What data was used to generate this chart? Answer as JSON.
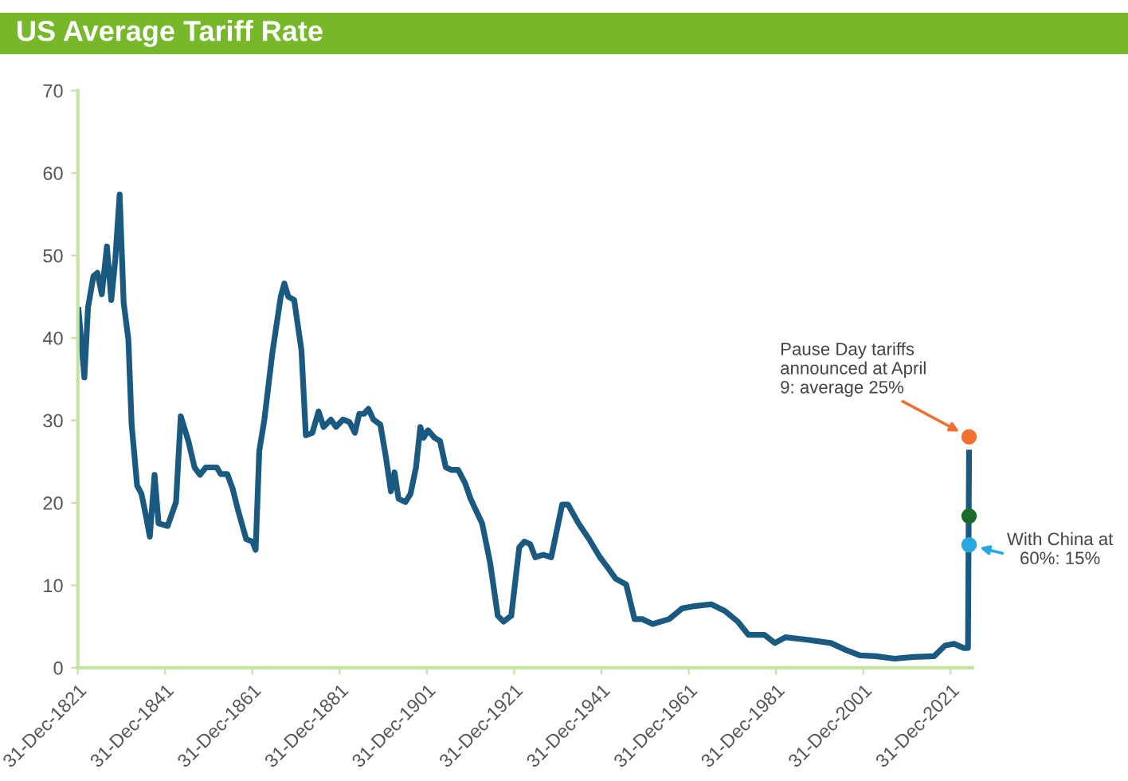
{
  "chart_data": {
    "type": "line",
    "title": "US Average Tariff Rate",
    "xlim": [
      "1821-12-31",
      "2026-12-31"
    ],
    "ylim": [
      0,
      70
    ],
    "xticks": [
      {
        "value": "1821-12-31",
        "label": "31-Dec-1821"
      },
      {
        "value": "1841-12-31",
        "label": "31-Dec-1841"
      },
      {
        "value": "1861-12-31",
        "label": "31-Dec-1861"
      },
      {
        "value": "1881-12-31",
        "label": "31-Dec-1881"
      },
      {
        "value": "1901-12-31",
        "label": "31-Dec-1901"
      },
      {
        "value": "1921-12-31",
        "label": "31-Dec-1921"
      },
      {
        "value": "1941-12-31",
        "label": "31-Dec-1941"
      },
      {
        "value": "1961-12-31",
        "label": "31-Dec-1961"
      },
      {
        "value": "1981-12-31",
        "label": "31-Dec-1981"
      },
      {
        "value": "2001-12-31",
        "label": "31-Dec-2001"
      },
      {
        "value": "2021-12-31",
        "label": "31-Dec-2021"
      }
    ],
    "yticks": [
      0,
      10,
      20,
      30,
      40,
      50,
      60,
      70
    ],
    "grid": false,
    "legend": false,
    "marker": "none",
    "line_style": "solid",
    "series": [
      {
        "color": "#1a5a80",
        "x": [
          "1822-03",
          "1823-07",
          "1824-05",
          "1825-08",
          "1826-07",
          "1827-07",
          "1828-09",
          "1829-09",
          "1830-08",
          "1831-08",
          "1832-07",
          "1833-08",
          "1834-05",
          "1835-08",
          "1836-08",
          "1837-08",
          "1838-07",
          "1839-08",
          "1840-07",
          "1842-08",
          "1844-07",
          "1845-08",
          "1847-05",
          "1848-10",
          "1850-01",
          "1851-05",
          "1853-11",
          "1854-10",
          "1856-04",
          "1857-07",
          "1858-09",
          "1860-08",
          "1862-01",
          "1862-10",
          "1863-08",
          "1864-10",
          "1866-08",
          "1868-07",
          "1869-05",
          "1870-04",
          "1871-08",
          "1873-04",
          "1874-04",
          "1875-10",
          "1877-03",
          "1878-05",
          "1880-01",
          "1881-03",
          "1882-10",
          "1884-04",
          "1885-07",
          "1886-07",
          "1887-08",
          "1888-08",
          "1889-10",
          "1891-05",
          "1892-08",
          "1893-10",
          "1894-08",
          "1895-07",
          "1897-02",
          "1898-04",
          "1899-07",
          "1900-07",
          "1901-04",
          "1902-04",
          "1903-10",
          "1905-01",
          "1906-05",
          "1907-09",
          "1909-03",
          "1910-10",
          "1912-01",
          "1913-07",
          "1914-09",
          "1916-07",
          "1918-04",
          "1919-08",
          "1921-05",
          "1923-03",
          "1924-05",
          "1925-09",
          "1926-11",
          "1928-09",
          "1930-07",
          "1933-01",
          "1934-05",
          "1936-10",
          "1939-03",
          "1941-09",
          "1943-07",
          "1945-04",
          "1947-09",
          "1949-08",
          "1951-05",
          "1953-10",
          "1957-07",
          "1960-07",
          "1963-08",
          "1967-03",
          "1970-04",
          "1973-04",
          "1975-09",
          "1979-05",
          "1981-10",
          "1984-03",
          "1989-02",
          "1994-08",
          "1998-04",
          "2001-04",
          "2004-11",
          "2009-03",
          "2013-07",
          "2018-04",
          "2020-10",
          "2022-11",
          "2025-01",
          "2026-01",
          "2026-04"
        ],
        "values": [
          43.4,
          35.2,
          43.7,
          47.5,
          47.9,
          45.3,
          51.1,
          44.6,
          49.5,
          57.4,
          44.3,
          39.8,
          29.5,
          22.1,
          21.1,
          18.5,
          15.9,
          23.4,
          17.5,
          17.2,
          20.1,
          30.5,
          27.5,
          24.3,
          23.4,
          24.3,
          24.3,
          23.5,
          23.5,
          21.7,
          19.2,
          15.6,
          15.3,
          14.3,
          26.3,
          30.1,
          38.2,
          45.0,
          46.6,
          45.0,
          44.6,
          38.5,
          28.2,
          28.5,
          31.1,
          29.2,
          30.1,
          29.2,
          30.1,
          29.8,
          28.5,
          30.8,
          30.8,
          31.4,
          30.1,
          29.5,
          25.6,
          21.4,
          23.7,
          20.5,
          20.1,
          21.1,
          24.3,
          29.2,
          27.9,
          28.8,
          27.9,
          27.5,
          24.3,
          24.0,
          24.0,
          22.4,
          20.5,
          18.8,
          17.5,
          12.7,
          6.3,
          5.6,
          6.3,
          14.6,
          15.3,
          15.0,
          13.4,
          13.7,
          13.4,
          19.8,
          19.8,
          17.5,
          15.6,
          13.4,
          12.1,
          10.8,
          10.1,
          5.9,
          5.9,
          5.3,
          5.9,
          7.2,
          7.5,
          7.7,
          6.9,
          5.6,
          4.0,
          4.0,
          3.0,
          3.7,
          3.4,
          3.0,
          2.1,
          1.5,
          1.4,
          1.1,
          1.3,
          1.4,
          2.7,
          2.9,
          2.4,
          2.4,
          26.1
        ]
      },
      {
        "type": "scatter",
        "marker": "circle",
        "color": "#f07030",
        "x": [
          "2026-04"
        ],
        "values": [
          28.0
        ]
      },
      {
        "type": "scatter",
        "marker": "circle",
        "color": "#29a8e0",
        "x": [
          "2026-04"
        ],
        "values": [
          14.9
        ]
      },
      {
        "type": "scatter",
        "marker": "circle",
        "color": "#1a6b2a",
        "x": [
          "2026-04"
        ],
        "values": [
          18.4
        ]
      }
    ],
    "annotations": [
      {
        "text": "Pause Day tariffs\nannounced at April\n9: average 25%",
        "x": "2026-04",
        "y": 28.0
      },
      {
        "text": "With China at\n60%: 15%",
        "x": "2026-04",
        "y": 14.9
      }
    ]
  }
}
